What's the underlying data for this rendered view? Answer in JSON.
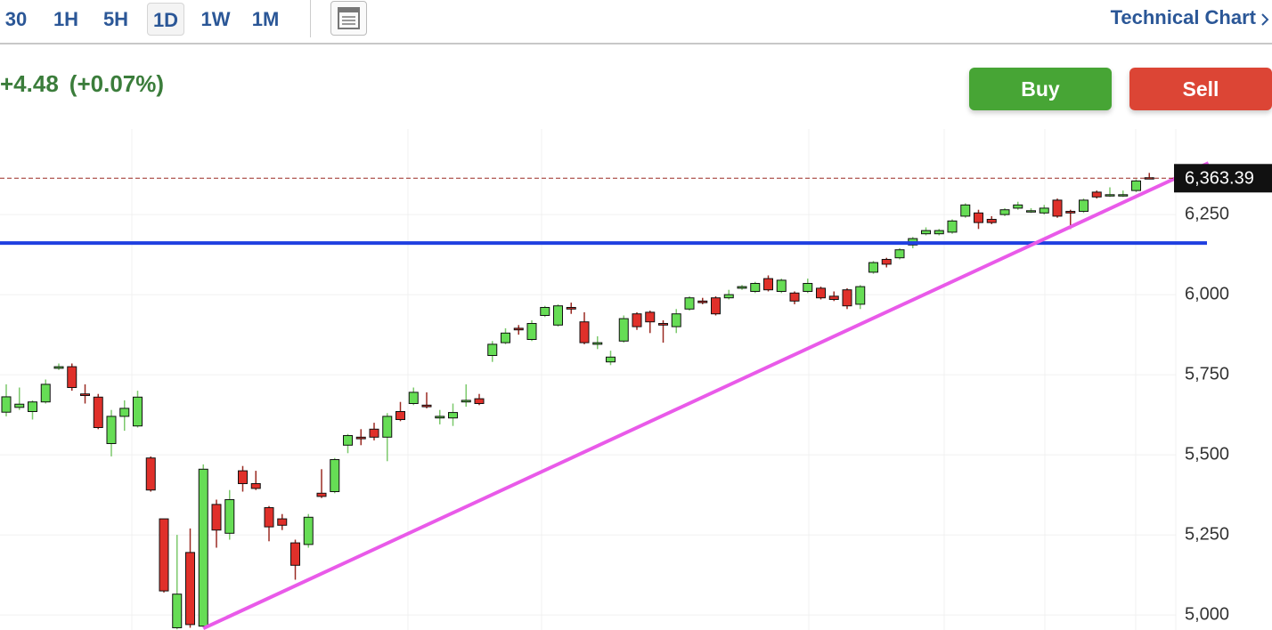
{
  "toolbar": {
    "intervals": [
      "30",
      "1H",
      "5H",
      "1D",
      "1W",
      "1M"
    ],
    "selected_index": 3,
    "link": "Technical Chart"
  },
  "quote": {
    "change": "+4.48",
    "change_percent": "(+0.07%)"
  },
  "actions": {
    "buy": "Buy",
    "sell": "Sell"
  },
  "chart_data": {
    "type": "candlestick",
    "open": [
      5633,
      5648,
      5635,
      5665,
      5770,
      5775,
      5690,
      5680,
      5535,
      5620,
      5590,
      5490,
      5300,
      4960,
      5195,
      4965,
      5345,
      5255,
      5450,
      5410,
      5335,
      5300,
      5225,
      5220,
      5380,
      5385,
      5530,
      5555,
      5580,
      5555,
      5635,
      5660,
      5655,
      5615,
      5615,
      5665,
      5675,
      5810,
      5850,
      5895,
      5860,
      5935,
      5905,
      5960,
      5915,
      5845,
      5790,
      5855,
      5940,
      5945,
      5910,
      5900,
      5955,
      5980,
      5990,
      5990,
      6020,
      6010,
      6050,
      6010,
      6005,
      6010,
      6020,
      5995,
      6015,
      5970,
      6070,
      6110,
      6115,
      6155,
      6190,
      6190,
      6195,
      6245,
      6255,
      6235,
      6250,
      6270,
      6260,
      6255,
      6295,
      6260,
      6260,
      6320,
      6310,
      6310,
      6325,
      6365
    ],
    "high": [
      5720,
      5710,
      5670,
      5735,
      5785,
      5785,
      5720,
      5690,
      5640,
      5670,
      5700,
      5495,
      5300,
      5250,
      5270,
      5470,
      5360,
      5390,
      5465,
      5450,
      5340,
      5315,
      5235,
      5315,
      5455,
      5490,
      5565,
      5580,
      5600,
      5630,
      5665,
      5710,
      5695,
      5640,
      5660,
      5720,
      5690,
      5855,
      5895,
      5905,
      5920,
      5965,
      5970,
      5975,
      5945,
      5870,
      5825,
      5935,
      5945,
      5950,
      5920,
      5955,
      5995,
      5990,
      5995,
      6015,
      6030,
      6040,
      6060,
      6050,
      6010,
      6050,
      6025,
      6010,
      6020,
      6030,
      6105,
      6115,
      6145,
      6180,
      6210,
      6205,
      6235,
      6285,
      6265,
      6245,
      6270,
      6290,
      6270,
      6280,
      6300,
      6265,
      6300,
      6325,
      6335,
      6325,
      6360,
      6380
    ],
    "low": [
      5620,
      5640,
      5610,
      5660,
      5765,
      5700,
      5660,
      5580,
      5495,
      5575,
      5585,
      5385,
      5070,
      4955,
      4960,
      4960,
      5210,
      5235,
      5385,
      5390,
      5230,
      5265,
      5110,
      5210,
      5365,
      5380,
      5505,
      5530,
      5545,
      5480,
      5605,
      5655,
      5645,
      5595,
      5590,
      5650,
      5655,
      5790,
      5845,
      5875,
      5855,
      5930,
      5900,
      5940,
      5845,
      5830,
      5780,
      5850,
      5890,
      5880,
      5850,
      5880,
      5950,
      5970,
      5935,
      5985,
      6015,
      6005,
      6010,
      6005,
      5970,
      6005,
      5985,
      5980,
      5955,
      5955,
      6065,
      6085,
      6110,
      6145,
      6185,
      6185,
      6190,
      6240,
      6205,
      6220,
      6245,
      6265,
      6255,
      6250,
      6240,
      6205,
      6255,
      6300,
      6305,
      6305,
      6320,
      6360
    ],
    "close": [
      5681,
      5658,
      5665,
      5720,
      5775,
      5710,
      5685,
      5585,
      5620,
      5645,
      5680,
      5390,
      5075,
      5065,
      4970,
      5455,
      5265,
      5360,
      5410,
      5395,
      5275,
      5280,
      5155,
      5305,
      5370,
      5485,
      5560,
      5550,
      5555,
      5620,
      5610,
      5695,
      5650,
      5620,
      5632,
      5670,
      5660,
      5845,
      5880,
      5890,
      5910,
      5960,
      5965,
      5955,
      5850,
      5850,
      5805,
      5925,
      5900,
      5915,
      5905,
      5940,
      5990,
      5975,
      5940,
      6000,
      6025,
      6035,
      6015,
      6045,
      5980,
      6035,
      5990,
      5985,
      5965,
      6025,
      6100,
      6095,
      6140,
      6175,
      6200,
      6200,
      6230,
      6280,
      6225,
      6225,
      6265,
      6280,
      6262,
      6270,
      6245,
      6255,
      6295,
      6305,
      6312,
      6312,
      6355,
      6363.39
    ],
    "up_color": "#66dd55",
    "down_color": "#e0302a",
    "ylim": [
      4953,
      6517
    ],
    "yticks": [
      {
        "value": 5000,
        "label": "5,000"
      },
      {
        "value": 5250,
        "label": "5,250"
      },
      {
        "value": 5500,
        "label": "5,500"
      },
      {
        "value": 5750,
        "label": "5,750"
      },
      {
        "value": 6000,
        "label": "6,000"
      },
      {
        "value": 6250,
        "label": "6,250"
      }
    ],
    "last_price": {
      "value": 6363.39,
      "label": "6,363.39"
    },
    "horizontal_lines": [
      {
        "value": 6161,
        "color": "#1f3fe0"
      }
    ],
    "trendlines": [
      {
        "x": [
          15,
          91.5
        ],
        "y": [
          4958,
          6411
        ],
        "color": "#e95ae9"
      }
    ],
    "grid": true
  }
}
